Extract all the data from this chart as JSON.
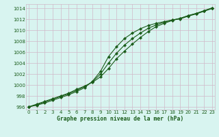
{
  "x": [
    0,
    1,
    2,
    3,
    4,
    5,
    6,
    7,
    8,
    9,
    10,
    11,
    12,
    13,
    14,
    15,
    16,
    17,
    18,
    19,
    20,
    21,
    22,
    23
  ],
  "line1": [
    996.0,
    996.5,
    997.0,
    997.5,
    998.0,
    998.5,
    999.2,
    999.8,
    1000.5,
    1001.5,
    1003.0,
    1004.8,
    1006.2,
    1007.5,
    1008.7,
    1009.8,
    1010.7,
    1011.3,
    1011.8,
    1012.2,
    1012.7,
    1013.1,
    1013.6,
    1014.1
  ],
  "line2": [
    996.0,
    996.4,
    996.9,
    997.4,
    997.9,
    998.4,
    999.0,
    999.7,
    1000.6,
    1002.0,
    1004.0,
    1005.8,
    1007.3,
    1008.5,
    1009.5,
    1010.4,
    1011.0,
    1011.5,
    1011.9,
    1012.2,
    1012.7,
    1013.1,
    1013.6,
    1014.1
  ],
  "line3": [
    996.0,
    996.3,
    996.7,
    997.2,
    997.7,
    998.2,
    998.8,
    999.5,
    1000.7,
    1002.5,
    1005.2,
    1007.0,
    1008.5,
    1009.5,
    1010.3,
    1010.9,
    1011.3,
    1011.6,
    1011.9,
    1012.1,
    1012.6,
    1013.0,
    1013.5,
    1014.0
  ],
  "line_color": "#1a5c1a",
  "bg_color": "#d8f4f0",
  "grid_color": "#d0b8c8",
  "xlabel": "Graphe pression niveau de la mer (hPa)",
  "xlabel_color": "#1a5c1a",
  "tick_color": "#1a5c1a",
  "ylim": [
    995.5,
    1014.8
  ],
  "xlim": [
    -0.3,
    23.3
  ],
  "yticks": [
    996,
    998,
    1000,
    1002,
    1004,
    1006,
    1008,
    1010,
    1012,
    1014
  ],
  "xticks": [
    0,
    1,
    2,
    3,
    4,
    5,
    6,
    7,
    8,
    9,
    10,
    11,
    12,
    13,
    14,
    15,
    16,
    17,
    18,
    19,
    20,
    21,
    22,
    23
  ]
}
